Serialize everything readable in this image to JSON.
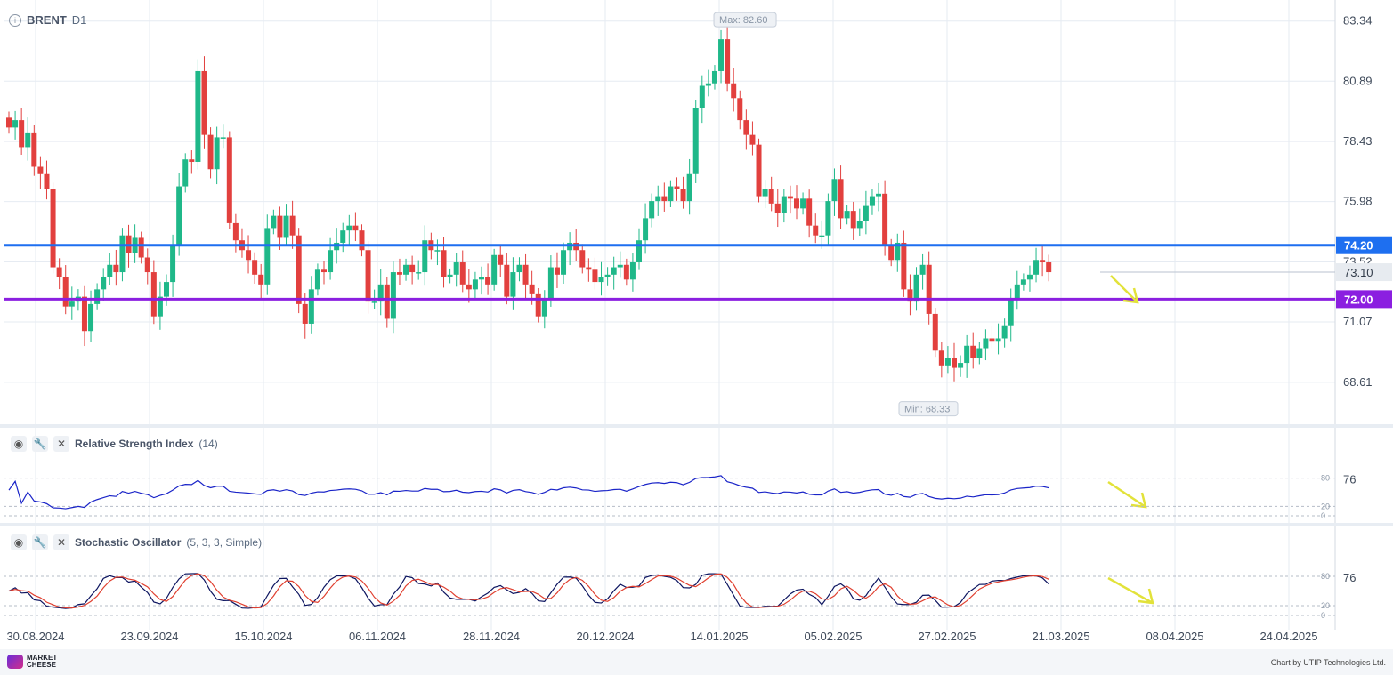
{
  "header": {
    "symbol": "BRENT",
    "timeframe": "D1"
  },
  "panels": {
    "rsi": {
      "name": "Relative Strength Index",
      "params": "(14)",
      "value_label": "76",
      "levels": [
        "80",
        "20",
        "0"
      ]
    },
    "stoch": {
      "name": "Stochastic Oscillator",
      "params": "(5, 3, 3, Simple)",
      "value_label": "76",
      "levels": [
        "80",
        "20",
        "0"
      ]
    }
  },
  "footer": {
    "brand_line1": "MARKET",
    "brand_line2": "CHEESE",
    "credit": "Chart by UTIP Technologies Ltd."
  },
  "chart_data": {
    "type": "candlestick",
    "title": "BRENT D1",
    "y_ticks": [
      83.34,
      80.89,
      78.43,
      75.98,
      73.52,
      71.07,
      68.61
    ],
    "y_range": [
      66.9,
      84.2
    ],
    "x_tick_labels": [
      "30.08.2024",
      "23.09.2024",
      "15.10.2024",
      "06.11.2024",
      "28.11.2024",
      "20.12.2024",
      "14.01.2025",
      "05.02.2025",
      "27.02.2025",
      "21.03.2025",
      "08.04.2025",
      "24.04.2025"
    ],
    "current_price": {
      "label": "73.10",
      "value": 73.1
    },
    "horizontal_lines": [
      {
        "value": 74.2,
        "label": "74.20",
        "color": "#1e6ff0"
      },
      {
        "value": 72.0,
        "label": "72.00",
        "color": "#8b1fe0"
      }
    ],
    "annotations": {
      "max": {
        "label": "Max: 82.60",
        "value": 82.6
      },
      "min": {
        "label": "Min: 68.33",
        "value": 68.33
      }
    },
    "colors": {
      "up": "#1fb889",
      "down": "#e2403e",
      "rsi": "#1a24c8",
      "stoch_k": "#0d1560",
      "stoch_d": "#e04030",
      "arrow": "#e2e23a"
    },
    "closes": [
      79.0,
      79.3,
      78.2,
      78.8,
      77.4,
      77.1,
      76.5,
      73.3,
      72.9,
      71.7,
      71.9,
      72.1,
      70.7,
      71.8,
      72.4,
      72.9,
      73.4,
      73.1,
      74.6,
      73.9,
      74.5,
      73.7,
      73.1,
      71.3,
      72.1,
      72.7,
      74.2,
      76.6,
      77.7,
      77.6,
      81.3,
      78.7,
      77.3,
      78.6,
      78.6,
      75.1,
      74.4,
      74.0,
      73.6,
      73.0,
      72.6,
      74.9,
      75.4,
      74.5,
      75.4,
      74.6,
      71.8,
      71.0,
      72.4,
      73.2,
      73.1,
      74.0,
      74.3,
      74.8,
      75.0,
      74.8,
      74.0,
      71.9,
      71.9,
      72.6,
      71.2,
      73.1,
      73.0,
      73.4,
      73.1,
      73.1,
      74.4,
      74.0,
      74.0,
      72.9,
      73.0,
      73.5,
      72.6,
      72.4,
      72.8,
      72.9,
      72.6,
      73.8,
      73.4,
      72.1,
      73.1,
      73.4,
      72.6,
      72.2,
      71.3,
      72.0,
      73.3,
      73.0,
      74.0,
      74.3,
      74.0,
      73.3,
      73.2,
      72.7,
      72.9,
      73.0,
      73.3,
      73.4,
      72.8,
      73.5,
      74.4,
      75.3,
      76.0,
      76.2,
      76.0,
      76.6,
      76.5,
      76.0,
      77.1,
      79.8,
      80.7,
      80.8,
      81.3,
      82.6,
      80.8,
      80.2,
      79.3,
      78.7,
      78.3,
      76.2,
      76.5,
      75.9,
      75.5,
      76.2,
      76.1,
      75.7,
      76.1,
      75.0,
      74.6,
      74.6,
      76.0,
      76.9,
      75.3,
      75.6,
      74.9,
      75.2,
      75.8,
      76.2,
      76.3,
      74.2,
      73.6,
      74.3,
      72.4,
      71.9,
      73.0,
      73.4,
      71.4,
      69.9,
      69.3,
      69.6,
      69.2,
      69.4,
      70.1,
      69.6,
      70.0,
      70.4,
      70.3,
      70.4,
      70.9,
      72.0,
      72.6,
      72.8,
      73.0,
      73.6,
      73.5,
      73.1
    ]
  }
}
